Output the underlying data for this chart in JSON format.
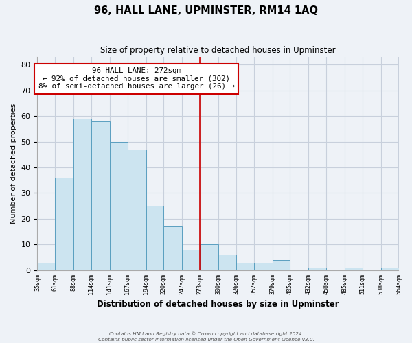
{
  "title": "96, HALL LANE, UPMINSTER, RM14 1AQ",
  "subtitle": "Size of property relative to detached houses in Upminster",
  "xlabel": "Distribution of detached houses by size in Upminster",
  "ylabel": "Number of detached properties",
  "bin_edges": [
    35,
    61,
    88,
    114,
    141,
    167,
    194,
    220,
    247,
    273,
    300,
    326,
    352,
    379,
    405,
    432,
    458,
    485,
    511,
    538,
    564
  ],
  "bin_labels": [
    "35sqm",
    "61sqm",
    "88sqm",
    "114sqm",
    "141sqm",
    "167sqm",
    "194sqm",
    "220sqm",
    "247sqm",
    "273sqm",
    "300sqm",
    "326sqm",
    "352sqm",
    "379sqm",
    "405sqm",
    "432sqm",
    "458sqm",
    "485sqm",
    "511sqm",
    "538sqm",
    "564sqm"
  ],
  "counts": [
    3,
    36,
    59,
    58,
    50,
    47,
    25,
    17,
    8,
    10,
    6,
    3,
    3,
    4,
    0,
    1,
    0,
    1,
    0,
    1
  ],
  "bar_color": "#cce4f0",
  "bar_edge_color": "#5a9fc0",
  "vline_x": 273,
  "vline_color": "#cc0000",
  "annotation_title": "96 HALL LANE: 272sqm",
  "annotation_line1": "← 92% of detached houses are smaller (302)",
  "annotation_line2": "8% of semi-detached houses are larger (26) →",
  "annotation_box_facecolor": "#ffffff",
  "annotation_border_color": "#cc0000",
  "ylim": [
    0,
    83
  ],
  "yticks": [
    0,
    10,
    20,
    30,
    40,
    50,
    60,
    70,
    80
  ],
  "bg_color": "#eef2f7",
  "grid_color": "#c8d0dc",
  "footer_line1": "Contains HM Land Registry data © Crown copyright and database right 2024.",
  "footer_line2": "Contains public sector information licensed under the Open Government Licence v3.0."
}
